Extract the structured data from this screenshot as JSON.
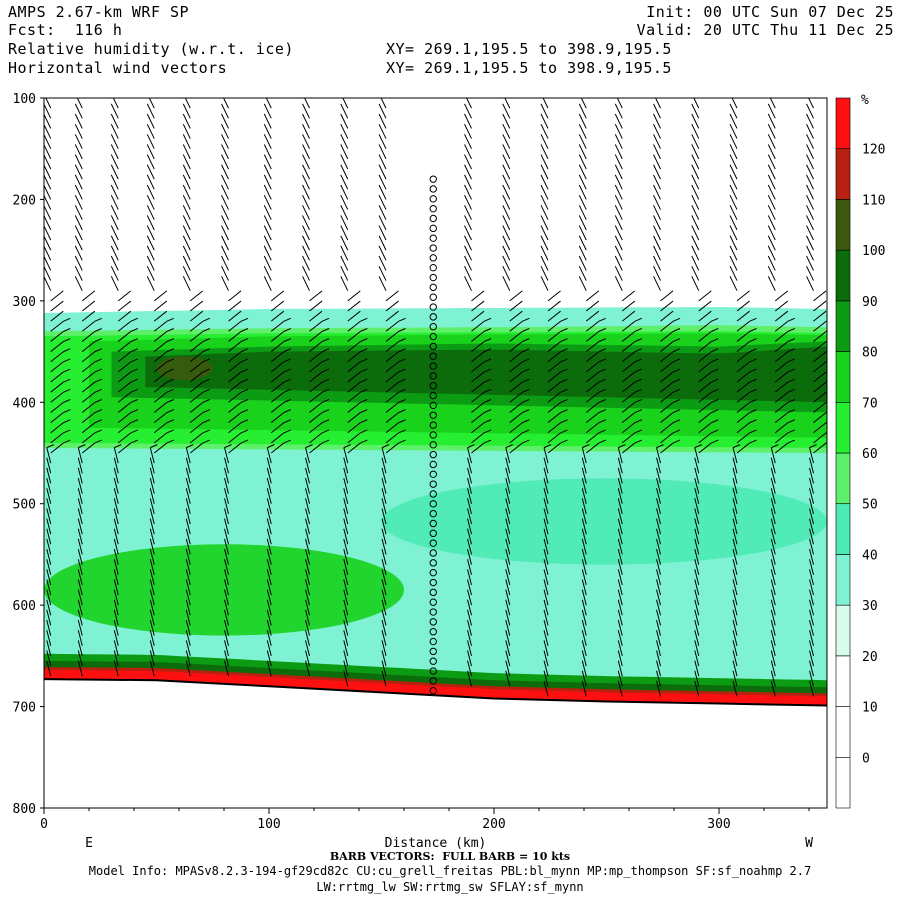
{
  "header": {
    "model": "AMPS 2.67-km WRF SP",
    "forecast": "Fcst:  116 h",
    "field1": "Relative humidity (w.r.t. ice)",
    "field2": "Horizontal wind vectors",
    "init": "Init: 00 UTC Sun 07 Dec 25",
    "valid": "Valid: 20 UTC Thu 11 Dec 25",
    "xy1": "XY= 269.1,195.5 to 398.9,195.5",
    "xy2": "XY= 269.1,195.5 to 398.9,195.5"
  },
  "footer": {
    "barb_note": "BARB VECTORS:  FULL BARB = 10 kts",
    "model_info": "Model Info: MPASv8.2.3-194-gf29cd82c CU:cu_grell_freitas PBL:bl_mynn MP:mp_thompson SF:sf_noahmp 2.7",
    "model_info2": "LW:rrtmg_lw SW:rrtmg_sw SFLAY:sf_mynn"
  },
  "chart_data": {
    "type": "heatmap",
    "xlabel": "Distance (km)",
    "x_end_left": "E",
    "x_end_right": "W",
    "xlim": [
      0,
      348
    ],
    "ylim": [
      800,
      100
    ],
    "xticks": [
      0,
      100,
      200,
      300
    ],
    "yticks": [
      100,
      200,
      300,
      400,
      500,
      600,
      700,
      800
    ],
    "colorbar": {
      "unit": "%",
      "levels": [
        0,
        10,
        20,
        30,
        40,
        50,
        60,
        70,
        80,
        90,
        100,
        110,
        120
      ],
      "colors": [
        "#ffffff",
        "#ffffff",
        "#ffffff",
        "#d8fcec",
        "#7ef2d2",
        "#4deab4",
        "#5ef06a",
        "#26ee30",
        "#18d21c",
        "#0c9c14",
        "#0c6c0c",
        "#3c5a0c",
        "#b82010",
        "#ff1010"
      ]
    },
    "surface_pressure": [
      [
        0,
        673
      ],
      [
        50,
        674
      ],
      [
        100,
        680
      ],
      [
        150,
        686
      ],
      [
        200,
        692
      ],
      [
        250,
        695
      ],
      [
        300,
        697
      ],
      [
        348,
        699
      ]
    ],
    "rh_layers": [
      {
        "level": 30,
        "top": [
          [
            0,
            312
          ],
          [
            100,
            308
          ],
          [
            200,
            307
          ],
          [
            300,
            306
          ],
          [
            348,
            308
          ]
        ],
        "bottom": [
          [
            0,
            670
          ],
          [
            348,
            695
          ]
        ]
      },
      {
        "level": 50,
        "top": [
          [
            0,
            330
          ],
          [
            100,
            327
          ],
          [
            200,
            326
          ],
          [
            300,
            324
          ],
          [
            348,
            326
          ]
        ],
        "bottom": [
          [
            0,
            445
          ],
          [
            348,
            450
          ]
        ]
      },
      {
        "level": 60,
        "top": [
          [
            0,
            335
          ],
          [
            100,
            332
          ],
          [
            200,
            331
          ],
          [
            300,
            330
          ],
          [
            348,
            332
          ]
        ],
        "bottom": [
          [
            0,
            440
          ],
          [
            348,
            445
          ]
        ]
      },
      {
        "level": 70,
        "top": [
          [
            20,
            340
          ],
          [
            100,
            335
          ],
          [
            200,
            333
          ],
          [
            300,
            332
          ],
          [
            348,
            334
          ]
        ],
        "bottom": [
          [
            20,
            425
          ],
          [
            348,
            435
          ]
        ]
      },
      {
        "level": 80,
        "top": [
          [
            30,
            350
          ],
          [
            100,
            345
          ],
          [
            200,
            342
          ],
          [
            300,
            345
          ],
          [
            348,
            340
          ]
        ],
        "bottom": [
          [
            30,
            395
          ],
          [
            348,
            410
          ]
        ]
      },
      {
        "level": 90,
        "top": [
          [
            45,
            355
          ],
          [
            100,
            350
          ],
          [
            200,
            348
          ],
          [
            300,
            352
          ],
          [
            348,
            345
          ]
        ],
        "bottom": [
          [
            45,
            385
          ],
          [
            348,
            400
          ]
        ]
      }
    ],
    "rh_patches": [
      {
        "level": 40,
        "x": [
          150,
          348
        ],
        "p": [
          475,
          560
        ]
      },
      {
        "level": 70,
        "x": [
          0,
          160
        ],
        "p": [
          540,
          630
        ]
      },
      {
        "level": 100,
        "x": [
          50,
          75
        ],
        "p": [
          355,
          378
        ]
      }
    ],
    "near_surface_band": [
      {
        "level": 80,
        "depth_hpa": 25
      },
      {
        "level": 90,
        "depth_hpa": 18
      },
      {
        "level": 110,
        "depth_hpa": 12
      },
      {
        "level": 120,
        "depth_hpa": 9
      }
    ],
    "calm_column_km": 173,
    "barb_columns_km": [
      3,
      17,
      33,
      49,
      65,
      82,
      101,
      118,
      135,
      152,
      173,
      190,
      207,
      224,
      241,
      257,
      274,
      291,
      308,
      325,
      342
    ]
  }
}
